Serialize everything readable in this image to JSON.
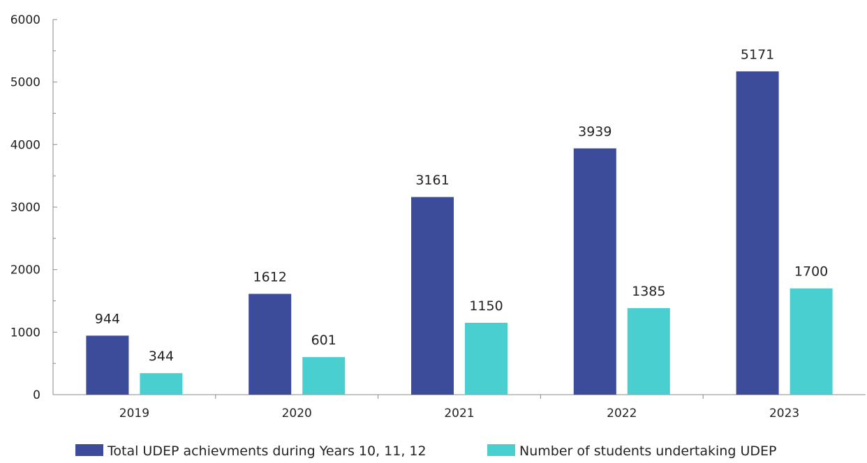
{
  "chart_data": {
    "type": "bar",
    "categories": [
      "2019",
      "2020",
      "2021",
      "2022",
      "2023"
    ],
    "series": [
      {
        "name": "Total UDEP achievments during Years 10, 11, 12",
        "values": [
          944,
          1612,
          3161,
          3939,
          5171
        ],
        "color": "#3d4b9b"
      },
      {
        "name": "Number of students undertaking UDEP",
        "values": [
          344,
          601,
          1150,
          1385,
          1700
        ],
        "color": "#4acfd1"
      }
    ],
    "title": "",
    "xlabel": "",
    "ylabel": "",
    "ylim": [
      0,
      6000
    ],
    "yticks": [
      0,
      1000,
      2000,
      3000,
      4000,
      5000,
      6000
    ],
    "legend_position": "bottom",
    "grid": false,
    "data_labels": true,
    "axis_color": "#888888"
  }
}
